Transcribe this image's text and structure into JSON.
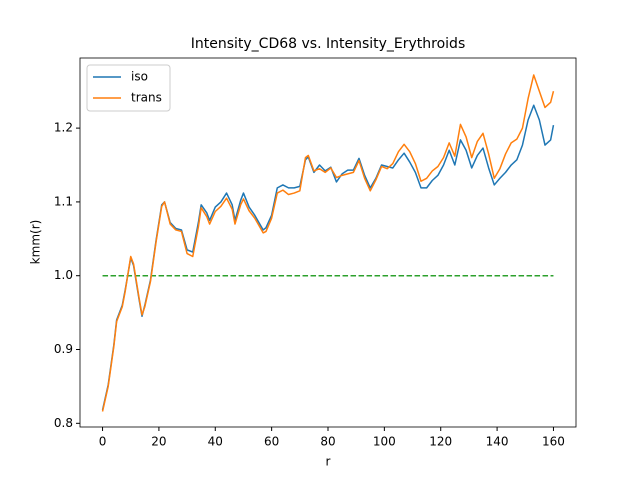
{
  "chart_data": {
    "type": "line",
    "title": "Intensity_CD68 vs. Intensity_Erythroids",
    "x_label": "r",
    "y_label": "kmm(r)",
    "x": [
      0,
      2,
      4,
      5,
      7,
      8,
      10,
      11,
      13,
      14,
      15,
      17,
      19,
      21,
      22,
      24,
      26,
      28,
      30,
      32,
      34,
      35,
      37,
      38,
      40,
      42,
      44,
      46,
      47,
      49,
      50,
      52,
      54,
      57,
      58,
      60,
      62,
      64,
      66,
      68,
      70,
      72,
      73,
      75,
      77,
      79,
      81,
      83,
      85,
      87,
      89,
      91,
      93,
      95,
      97,
      99,
      101,
      103,
      105,
      107,
      109,
      111,
      113,
      115,
      117,
      119,
      121,
      123,
      125,
      127,
      129,
      131,
      133,
      135,
      137,
      139,
      141,
      143,
      145,
      147,
      149,
      151,
      153,
      155,
      157,
      159,
      160
    ],
    "series": [
      {
        "name": "iso",
        "color": "#1f77b4",
        "values": [
          0.818,
          0.852,
          0.906,
          0.94,
          0.96,
          0.98,
          1.024,
          1.014,
          0.967,
          0.945,
          0.96,
          0.994,
          1.048,
          1.096,
          1.1,
          1.072,
          1.064,
          1.062,
          1.035,
          1.032,
          1.072,
          1.096,
          1.085,
          1.075,
          1.093,
          1.1,
          1.112,
          1.096,
          1.075,
          1.102,
          1.112,
          1.093,
          1.082,
          1.062,
          1.065,
          1.082,
          1.119,
          1.123,
          1.119,
          1.119,
          1.121,
          1.157,
          1.161,
          1.14,
          1.15,
          1.142,
          1.147,
          1.127,
          1.138,
          1.143,
          1.143,
          1.159,
          1.136,
          1.119,
          1.132,
          1.15,
          1.148,
          1.146,
          1.157,
          1.166,
          1.154,
          1.14,
          1.119,
          1.119,
          1.129,
          1.136,
          1.15,
          1.17,
          1.15,
          1.184,
          1.17,
          1.146,
          1.163,
          1.173,
          1.146,
          1.123,
          1.132,
          1.14,
          1.15,
          1.157,
          1.177,
          1.211,
          1.231,
          1.211,
          1.177,
          1.184,
          1.204
        ]
      },
      {
        "name": "trans",
        "color": "#ff7f0e",
        "values": [
          0.816,
          0.85,
          0.904,
          0.938,
          0.958,
          0.978,
          1.026,
          1.016,
          0.969,
          0.947,
          0.958,
          0.992,
          1.046,
          1.094,
          1.1,
          1.07,
          1.062,
          1.06,
          1.03,
          1.026,
          1.066,
          1.092,
          1.08,
          1.07,
          1.087,
          1.094,
          1.105,
          1.09,
          1.07,
          1.096,
          1.104,
          1.088,
          1.078,
          1.058,
          1.06,
          1.078,
          1.112,
          1.116,
          1.11,
          1.112,
          1.115,
          1.16,
          1.163,
          1.142,
          1.145,
          1.14,
          1.146,
          1.133,
          1.136,
          1.138,
          1.14,
          1.156,
          1.132,
          1.115,
          1.13,
          1.148,
          1.145,
          1.152,
          1.168,
          1.178,
          1.168,
          1.152,
          1.128,
          1.132,
          1.142,
          1.148,
          1.16,
          1.18,
          1.162,
          1.205,
          1.188,
          1.16,
          1.182,
          1.193,
          1.165,
          1.132,
          1.145,
          1.165,
          1.18,
          1.185,
          1.2,
          1.24,
          1.272,
          1.25,
          1.228,
          1.235,
          1.25
        ]
      }
    ],
    "hline": {
      "y": 1,
      "x": [
        0,
        160
      ],
      "color": "#2ca02c",
      "style": "dashed"
    },
    "xlim": [
      -8,
      168
    ],
    "ylim": [
      0.795,
      1.295
    ],
    "xticks": [
      0,
      20,
      40,
      60,
      80,
      100,
      120,
      140,
      160
    ],
    "yticks": [
      0.8,
      0.9,
      {
        "value": 1,
        "label": "1.0"
      },
      1.1,
      1.2
    ],
    "legend": "upper left",
    "grid": false
  }
}
